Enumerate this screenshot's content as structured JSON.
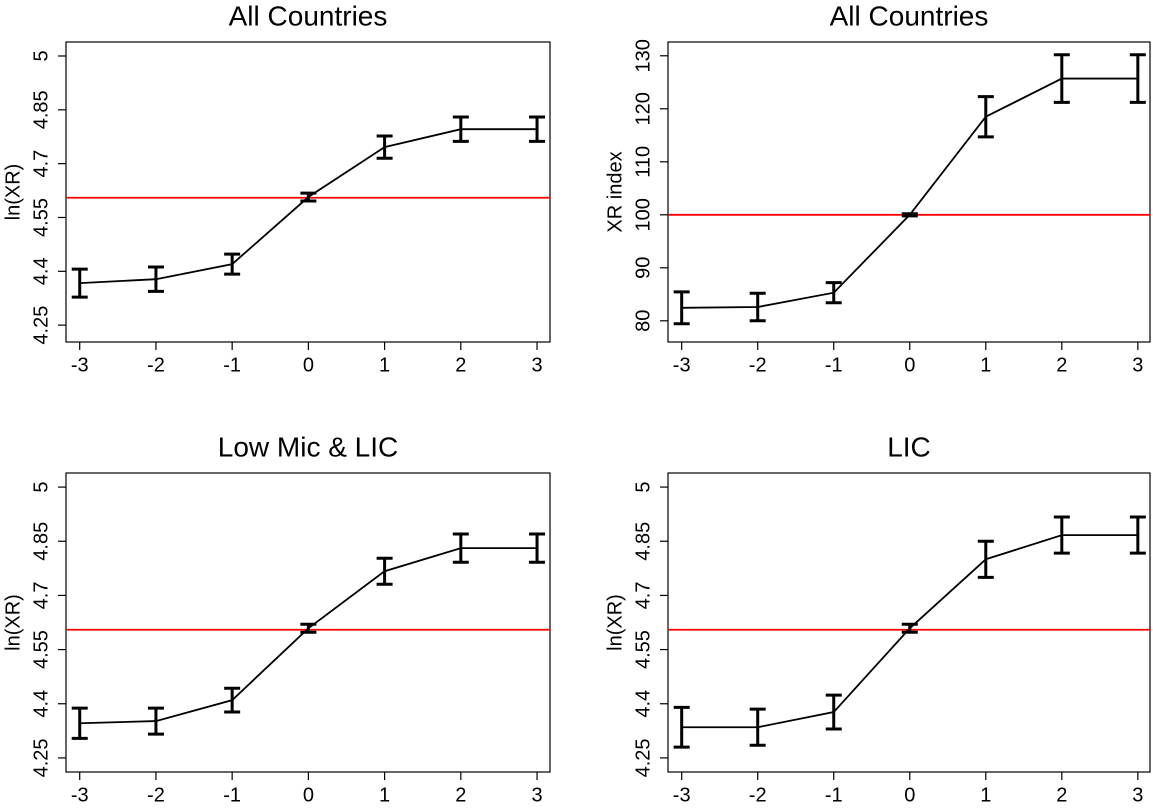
{
  "chart_data": [
    {
      "type": "line",
      "title": "All Countries",
      "y_label": "ln(XR)",
      "x": [
        -3,
        -2,
        -1,
        0,
        1,
        2,
        3
      ],
      "series": [
        {
          "color": "#000000",
          "values": [
            4.367,
            4.378,
            4.42,
            4.607,
            4.746,
            4.796,
            4.796
          ],
          "errors": [
            0.039,
            0.034,
            0.028,
            0.011,
            0.031,
            0.034,
            0.034
          ]
        }
      ],
      "hline": 4.605,
      "hline_color": "#ff0000",
      "xlim": [
        -3.18,
        3.17
      ],
      "xticks": [
        -3,
        -2,
        -1,
        0,
        1,
        2,
        3
      ],
      "ylim": [
        4.203,
        5.039
      ],
      "yticks": [
        4.25,
        4.4,
        4.55,
        4.7,
        4.85,
        5
      ]
    },
    {
      "type": "line",
      "title": "All Countries",
      "y_label": "XR index",
      "x": [
        -3,
        -2,
        -1,
        0,
        1,
        2,
        3
      ],
      "series": [
        {
          "color": "#000000",
          "values": [
            82.45,
            82.6,
            85.3,
            100,
            118.5,
            125.7,
            125.7
          ],
          "errors": [
            3.0,
            2.6,
            1.9,
            0.2,
            3.8,
            4.5,
            4.5
          ]
        }
      ],
      "hline": 100,
      "hline_color": "#ff0000",
      "xlim": [
        -3.18,
        3.16
      ],
      "xticks": [
        -3,
        -2,
        -1,
        0,
        1,
        2,
        3
      ],
      "ylim": [
        76.0,
        132.6
      ],
      "yticks": [
        80,
        90,
        100,
        110,
        120,
        130
      ]
    },
    {
      "type": "line",
      "title": "Low Mic & LIC",
      "y_label": "ln(XR)",
      "x": [
        -3,
        -2,
        -1,
        0,
        1,
        2,
        3
      ],
      "series": [
        {
          "color": "#000000",
          "values": [
            4.346,
            4.352,
            4.41,
            4.609,
            4.767,
            4.831,
            4.831
          ],
          "errors": [
            0.042,
            0.036,
            0.033,
            0.011,
            0.036,
            0.039,
            0.039
          ]
        }
      ],
      "hline": 4.605,
      "hline_color": "#ff0000",
      "xlim": [
        -3.18,
        3.17
      ],
      "xticks": [
        -3,
        -2,
        -1,
        0,
        1,
        2,
        3
      ],
      "ylim": [
        4.211,
        5.039
      ],
      "yticks": [
        4.25,
        4.4,
        4.55,
        4.7,
        4.85,
        5
      ]
    },
    {
      "type": "line",
      "title": "LIC",
      "y_label": "ln(XR)",
      "x": [
        -3,
        -2,
        -1,
        0,
        1,
        2,
        3
      ],
      "series": [
        {
          "color": "#000000",
          "values": [
            4.335,
            4.335,
            4.377,
            4.609,
            4.8,
            4.867,
            4.867
          ],
          "errors": [
            0.055,
            0.05,
            0.047,
            0.011,
            0.05,
            0.05,
            0.05
          ]
        }
      ],
      "hline": 4.605,
      "hline_color": "#ff0000",
      "xlim": [
        -3.18,
        3.16
      ],
      "xticks": [
        -3,
        -2,
        -1,
        0,
        1,
        2,
        3
      ],
      "ylim": [
        4.211,
        5.039
      ],
      "yticks": [
        4.25,
        4.4,
        4.55,
        4.7,
        4.85,
        5
      ]
    }
  ]
}
